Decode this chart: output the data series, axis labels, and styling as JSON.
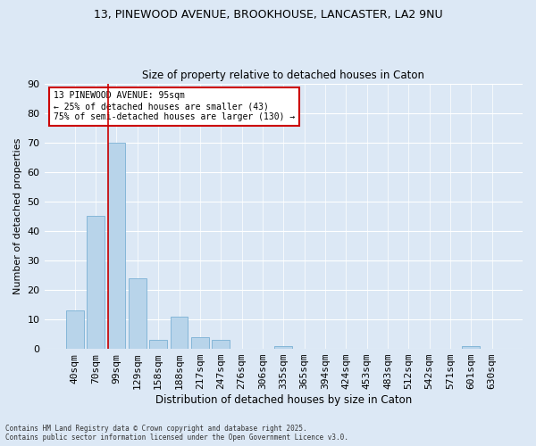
{
  "title_line1": "13, PINEWOOD AVENUE, BROOKHOUSE, LANCASTER, LA2 9NU",
  "title_line2": "Size of property relative to detached houses in Caton",
  "xlabel": "Distribution of detached houses by size in Caton",
  "ylabel": "Number of detached properties",
  "categories": [
    "40sqm",
    "70sqm",
    "99sqm",
    "129sqm",
    "158sqm",
    "188sqm",
    "217sqm",
    "247sqm",
    "276sqm",
    "306sqm",
    "335sqm",
    "365sqm",
    "394sqm",
    "424sqm",
    "453sqm",
    "483sqm",
    "512sqm",
    "542sqm",
    "571sqm",
    "601sqm",
    "630sqm"
  ],
  "values": [
    13,
    45,
    70,
    24,
    3,
    11,
    4,
    3,
    0,
    0,
    1,
    0,
    0,
    0,
    0,
    0,
    0,
    0,
    0,
    1,
    0
  ],
  "bar_color": "#b8d4ea",
  "bar_edge_color": "#7ab0d4",
  "background_color": "#dce8f5",
  "grid_color": "#ffffff",
  "vline_color": "#cc0000",
  "annotation_text": "13 PINEWOOD AVENUE: 95sqm\n← 25% of detached houses are smaller (43)\n75% of semi-detached houses are larger (130) →",
  "annotation_box_color": "#ffffff",
  "annotation_box_edge_color": "#cc0000",
  "ylim": [
    0,
    90
  ],
  "yticks": [
    0,
    10,
    20,
    30,
    40,
    50,
    60,
    70,
    80,
    90
  ],
  "footer_line1": "Contains HM Land Registry data © Crown copyright and database right 2025.",
  "footer_line2": "Contains public sector information licensed under the Open Government Licence v3.0."
}
